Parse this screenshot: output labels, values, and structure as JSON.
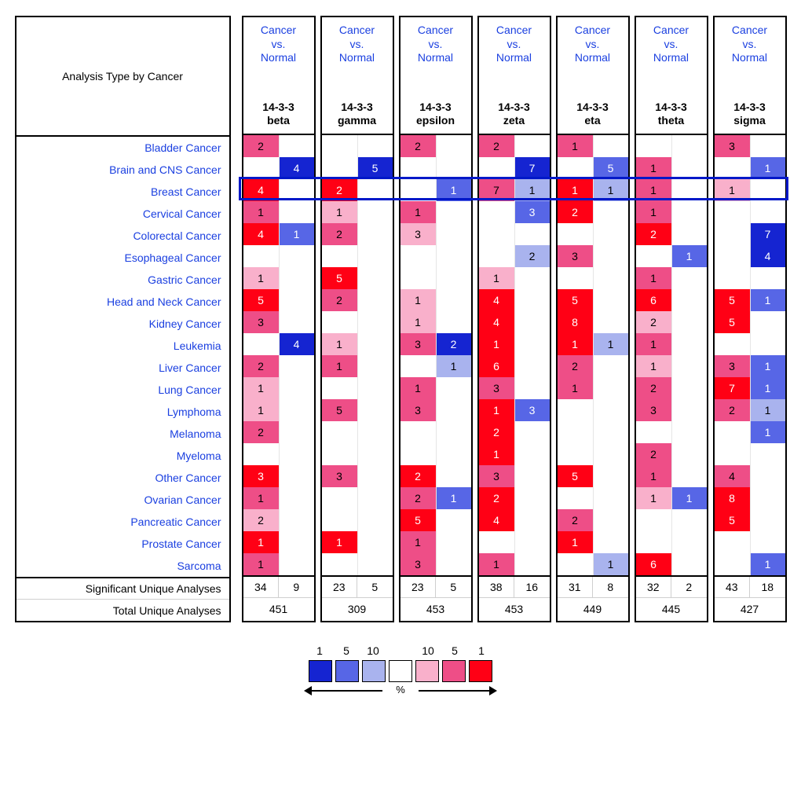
{
  "header": {
    "rowTitle": "Analysis Type by Cancer",
    "colTop": "Cancer vs. Normal"
  },
  "columns": [
    {
      "label1": "14-3-3",
      "label2": "beta",
      "sig": [
        34,
        9
      ],
      "total": 451
    },
    {
      "label1": "14-3-3",
      "label2": "gamma",
      "sig": [
        23,
        5
      ],
      "total": 309
    },
    {
      "label1": "14-3-3",
      "label2": "epsilon",
      "sig": [
        23,
        5
      ],
      "total": 453
    },
    {
      "label1": "14-3-3",
      "label2": "zeta",
      "sig": [
        38,
        16
      ],
      "total": 453
    },
    {
      "label1": "14-3-3",
      "label2": "eta",
      "sig": [
        31,
        8
      ],
      "total": 449
    },
    {
      "label1": "14-3-3",
      "label2": "theta",
      "sig": [
        32,
        2
      ],
      "total": 445
    },
    {
      "label1": "14-3-3",
      "label2": "sigma",
      "sig": [
        43,
        18
      ],
      "total": 427
    }
  ],
  "rows": [
    "Bladder Cancer",
    "Brain and CNS Cancer",
    "Breast Cancer",
    "Cervical Cancer",
    "Colorectal Cancer",
    "Esophageal Cancer",
    "Gastric Cancer",
    "Head and Neck Cancer",
    "Kidney Cancer",
    "Leukemia",
    "Liver Cancer",
    "Lung Cancer",
    "Lymphoma",
    "Melanoma",
    "Myeloma",
    "Other Cancer",
    "Ovarian Cancer",
    "Pancreatic Cancer",
    "Prostate Cancer",
    "Sarcoma"
  ],
  "footerRows": [
    "Significant Unique Analyses",
    "Total Unique Analyses"
  ],
  "highlightRowIndex": 2,
  "colors": {
    "link": "#1a3fe0",
    "border": "#000000",
    "hilite": "#0018c8"
  },
  "palette": {
    "r3": {
      "bg": "#ff0015",
      "fg": "#ffffff"
    },
    "r2": {
      "bg": "#ee4e87",
      "fg": "#000000"
    },
    "r1": {
      "bg": "#f9b0cb",
      "fg": "#000000"
    },
    "b1": {
      "bg": "#a9b3ee",
      "fg": "#000000"
    },
    "b2": {
      "bg": "#5766e6",
      "fg": "#ffffff"
    },
    "b3": {
      "bg": "#1524d1",
      "fg": "#ffffff"
    },
    "w": {
      "bg": "#ffffff",
      "fg": "#000000"
    }
  },
  "legend": {
    "numbers": [
      "1",
      "5",
      "10",
      "10",
      "5",
      "1"
    ],
    "swatches": [
      "b3",
      "b2",
      "b1",
      "w",
      "r1",
      "r2",
      "r3"
    ],
    "percent": "%"
  },
  "cells": [
    [
      [
        "2",
        "r2"
      ],
      [
        "",
        ""
      ],
      [
        "",
        ""
      ],
      [
        "",
        ""
      ],
      [
        "2",
        "r2"
      ],
      [
        "",
        ""
      ],
      [
        "2",
        "r2"
      ],
      [
        "",
        ""
      ],
      [
        "1",
        "r2"
      ],
      [
        "",
        ""
      ],
      [
        "",
        ""
      ],
      [
        "",
        ""
      ],
      [
        "3",
        "r2"
      ],
      [
        "",
        ""
      ]
    ],
    [
      [
        "",
        ""
      ],
      [
        "4",
        "b3"
      ],
      [
        "",
        ""
      ],
      [
        "5",
        "b3"
      ],
      [
        "",
        ""
      ],
      [
        "",
        ""
      ],
      [
        "",
        ""
      ],
      [
        "7",
        "b3"
      ],
      [
        "",
        ""
      ],
      [
        "5",
        "b2"
      ],
      [
        "1",
        "r2"
      ],
      [
        "",
        ""
      ],
      [
        "",
        ""
      ],
      [
        "1",
        "b2"
      ]
    ],
    [
      [
        "4",
        "r3"
      ],
      [
        "",
        ""
      ],
      [
        "2",
        "r3"
      ],
      [
        "",
        ""
      ],
      [
        "",
        ""
      ],
      [
        "1",
        "b2"
      ],
      [
        "7",
        "r2"
      ],
      [
        "1",
        "b1"
      ],
      [
        "1",
        "r3"
      ],
      [
        "1",
        "b1"
      ],
      [
        "1",
        "r2"
      ],
      [
        "",
        ""
      ],
      [
        "1",
        "r1"
      ],
      [
        "",
        ""
      ]
    ],
    [
      [
        "1",
        "r2"
      ],
      [
        "",
        ""
      ],
      [
        "1",
        "r1"
      ],
      [
        "",
        ""
      ],
      [
        "1",
        "r2"
      ],
      [
        "",
        ""
      ],
      [
        "",
        ""
      ],
      [
        "3",
        "b2"
      ],
      [
        "2",
        "r3"
      ],
      [
        "",
        ""
      ],
      [
        "1",
        "r2"
      ],
      [
        "",
        ""
      ],
      [
        "",
        ""
      ],
      [
        "",
        ""
      ]
    ],
    [
      [
        "4",
        "r3"
      ],
      [
        "1",
        "b2"
      ],
      [
        "2",
        "r2"
      ],
      [
        "",
        ""
      ],
      [
        "3",
        "r1"
      ],
      [
        "",
        ""
      ],
      [
        "",
        ""
      ],
      [
        "",
        ""
      ],
      [
        "",
        ""
      ],
      [
        "",
        ""
      ],
      [
        "2",
        "r3"
      ],
      [
        "",
        ""
      ],
      [
        "",
        ""
      ],
      [
        "7",
        "b3"
      ]
    ],
    [
      [
        "",
        ""
      ],
      [
        "",
        ""
      ],
      [
        "",
        ""
      ],
      [
        "",
        ""
      ],
      [
        "",
        ""
      ],
      [
        "",
        ""
      ],
      [
        "",
        ""
      ],
      [
        "2",
        "b1"
      ],
      [
        "3",
        "r2"
      ],
      [
        "",
        ""
      ],
      [
        "",
        ""
      ],
      [
        "1",
        "b2"
      ],
      [
        "",
        ""
      ],
      [
        "4",
        "b3"
      ]
    ],
    [
      [
        "1",
        "r1"
      ],
      [
        "",
        ""
      ],
      [
        "5",
        "r3"
      ],
      [
        "",
        ""
      ],
      [
        "",
        ""
      ],
      [
        "",
        ""
      ],
      [
        "1",
        "r1"
      ],
      [
        "",
        ""
      ],
      [
        "",
        ""
      ],
      [
        "",
        ""
      ],
      [
        "1",
        "r2"
      ],
      [
        "",
        ""
      ],
      [
        "",
        ""
      ],
      [
        "",
        ""
      ]
    ],
    [
      [
        "5",
        "r3"
      ],
      [
        "",
        ""
      ],
      [
        "2",
        "r2"
      ],
      [
        "",
        ""
      ],
      [
        "1",
        "r1"
      ],
      [
        "",
        ""
      ],
      [
        "4",
        "r3"
      ],
      [
        "",
        ""
      ],
      [
        "5",
        "r3"
      ],
      [
        "",
        ""
      ],
      [
        "6",
        "r3"
      ],
      [
        "",
        ""
      ],
      [
        "5",
        "r3"
      ],
      [
        "1",
        "b2"
      ]
    ],
    [
      [
        "3",
        "r2"
      ],
      [
        "",
        ""
      ],
      [
        "",
        ""
      ],
      [
        "",
        ""
      ],
      [
        "1",
        "r1"
      ],
      [
        "",
        ""
      ],
      [
        "4",
        "r3"
      ],
      [
        "",
        ""
      ],
      [
        "8",
        "r3"
      ],
      [
        "",
        ""
      ],
      [
        "2",
        "r1"
      ],
      [
        "",
        ""
      ],
      [
        "5",
        "r3"
      ],
      [
        "",
        ""
      ]
    ],
    [
      [
        "",
        ""
      ],
      [
        "4",
        "b3"
      ],
      [
        "1",
        "r1"
      ],
      [
        "",
        ""
      ],
      [
        "3",
        "r2"
      ],
      [
        "2",
        "b3"
      ],
      [
        "1",
        "r3"
      ],
      [
        "",
        ""
      ],
      [
        "1",
        "r3"
      ],
      [
        "1",
        "b1"
      ],
      [
        "1",
        "r2"
      ],
      [
        "",
        ""
      ],
      [
        "",
        ""
      ],
      [
        "",
        ""
      ]
    ],
    [
      [
        "2",
        "r2"
      ],
      [
        "",
        ""
      ],
      [
        "1",
        "r2"
      ],
      [
        "",
        ""
      ],
      [
        "",
        ""
      ],
      [
        "1",
        "b1"
      ],
      [
        "6",
        "r3"
      ],
      [
        "",
        ""
      ],
      [
        "2",
        "r2"
      ],
      [
        "",
        ""
      ],
      [
        "1",
        "r1"
      ],
      [
        "",
        ""
      ],
      [
        "3",
        "r2"
      ],
      [
        "1",
        "b2"
      ]
    ],
    [
      [
        "1",
        "r1"
      ],
      [
        "",
        ""
      ],
      [
        "",
        ""
      ],
      [
        "",
        ""
      ],
      [
        "1",
        "r2"
      ],
      [
        "",
        ""
      ],
      [
        "3",
        "r2"
      ],
      [
        "",
        ""
      ],
      [
        "1",
        "r2"
      ],
      [
        "",
        ""
      ],
      [
        "2",
        "r2"
      ],
      [
        "",
        ""
      ],
      [
        "7",
        "r3"
      ],
      [
        "1",
        "b2"
      ]
    ],
    [
      [
        "1",
        "r1"
      ],
      [
        "",
        ""
      ],
      [
        "5",
        "r2"
      ],
      [
        "",
        ""
      ],
      [
        "3",
        "r2"
      ],
      [
        "",
        ""
      ],
      [
        "1",
        "r3"
      ],
      [
        "3",
        "b2"
      ],
      [
        "",
        ""
      ],
      [
        "",
        ""
      ],
      [
        "3",
        "r2"
      ],
      [
        "",
        ""
      ],
      [
        "2",
        "r2"
      ],
      [
        "1",
        "b1"
      ]
    ],
    [
      [
        "2",
        "r2"
      ],
      [
        "",
        ""
      ],
      [
        "",
        ""
      ],
      [
        "",
        ""
      ],
      [
        "",
        ""
      ],
      [
        "",
        ""
      ],
      [
        "2",
        "r3"
      ],
      [
        "",
        ""
      ],
      [
        "",
        ""
      ],
      [
        "",
        ""
      ],
      [
        "",
        ""
      ],
      [
        "",
        ""
      ],
      [
        "",
        ""
      ],
      [
        "1",
        "b2"
      ]
    ],
    [
      [
        "",
        ""
      ],
      [
        "",
        ""
      ],
      [
        "",
        ""
      ],
      [
        "",
        ""
      ],
      [
        "",
        ""
      ],
      [
        "",
        ""
      ],
      [
        "1",
        "r3"
      ],
      [
        "",
        ""
      ],
      [
        "",
        ""
      ],
      [
        "",
        ""
      ],
      [
        "2",
        "r2"
      ],
      [
        "",
        ""
      ],
      [
        "",
        ""
      ],
      [
        "",
        ""
      ]
    ],
    [
      [
        "3",
        "r3"
      ],
      [
        "",
        ""
      ],
      [
        "3",
        "r2"
      ],
      [
        "",
        ""
      ],
      [
        "2",
        "r3"
      ],
      [
        "",
        ""
      ],
      [
        "3",
        "r2"
      ],
      [
        "",
        ""
      ],
      [
        "5",
        "r3"
      ],
      [
        "",
        ""
      ],
      [
        "1",
        "r2"
      ],
      [
        "",
        ""
      ],
      [
        "4",
        "r2"
      ],
      [
        "",
        ""
      ]
    ],
    [
      [
        "1",
        "r2"
      ],
      [
        "",
        ""
      ],
      [
        "",
        ""
      ],
      [
        "",
        ""
      ],
      [
        "2",
        "r2"
      ],
      [
        "1",
        "b2"
      ],
      [
        "2",
        "r3"
      ],
      [
        "",
        ""
      ],
      [
        "",
        ""
      ],
      [
        "",
        ""
      ],
      [
        "1",
        "r1"
      ],
      [
        "1",
        "b2"
      ],
      [
        "8",
        "r3"
      ],
      [
        "",
        ""
      ]
    ],
    [
      [
        "2",
        "r1"
      ],
      [
        "",
        ""
      ],
      [
        "",
        ""
      ],
      [
        "",
        ""
      ],
      [
        "5",
        "r3"
      ],
      [
        "",
        ""
      ],
      [
        "4",
        "r3"
      ],
      [
        "",
        ""
      ],
      [
        "2",
        "r2"
      ],
      [
        "",
        ""
      ],
      [
        "",
        ""
      ],
      [
        "",
        ""
      ],
      [
        "5",
        "r3"
      ],
      [
        "",
        ""
      ]
    ],
    [
      [
        "1",
        "r3"
      ],
      [
        "",
        ""
      ],
      [
        "1",
        "r3"
      ],
      [
        "",
        ""
      ],
      [
        "1",
        "r2"
      ],
      [
        "",
        ""
      ],
      [
        "",
        ""
      ],
      [
        "",
        ""
      ],
      [
        "1",
        "r3"
      ],
      [
        "",
        ""
      ],
      [
        "",
        ""
      ],
      [
        "",
        ""
      ],
      [
        "",
        ""
      ],
      [
        "",
        ""
      ]
    ],
    [
      [
        "1",
        "r2"
      ],
      [
        "",
        ""
      ],
      [
        "",
        ""
      ],
      [
        "",
        ""
      ],
      [
        "3",
        "r2"
      ],
      [
        "",
        ""
      ],
      [
        "1",
        "r2"
      ],
      [
        "",
        ""
      ],
      [
        "",
        ""
      ],
      [
        "1",
        "b1"
      ],
      [
        "6",
        "r3"
      ],
      [
        "",
        ""
      ],
      [
        "",
        ""
      ],
      [
        "1",
        "b2"
      ]
    ]
  ]
}
